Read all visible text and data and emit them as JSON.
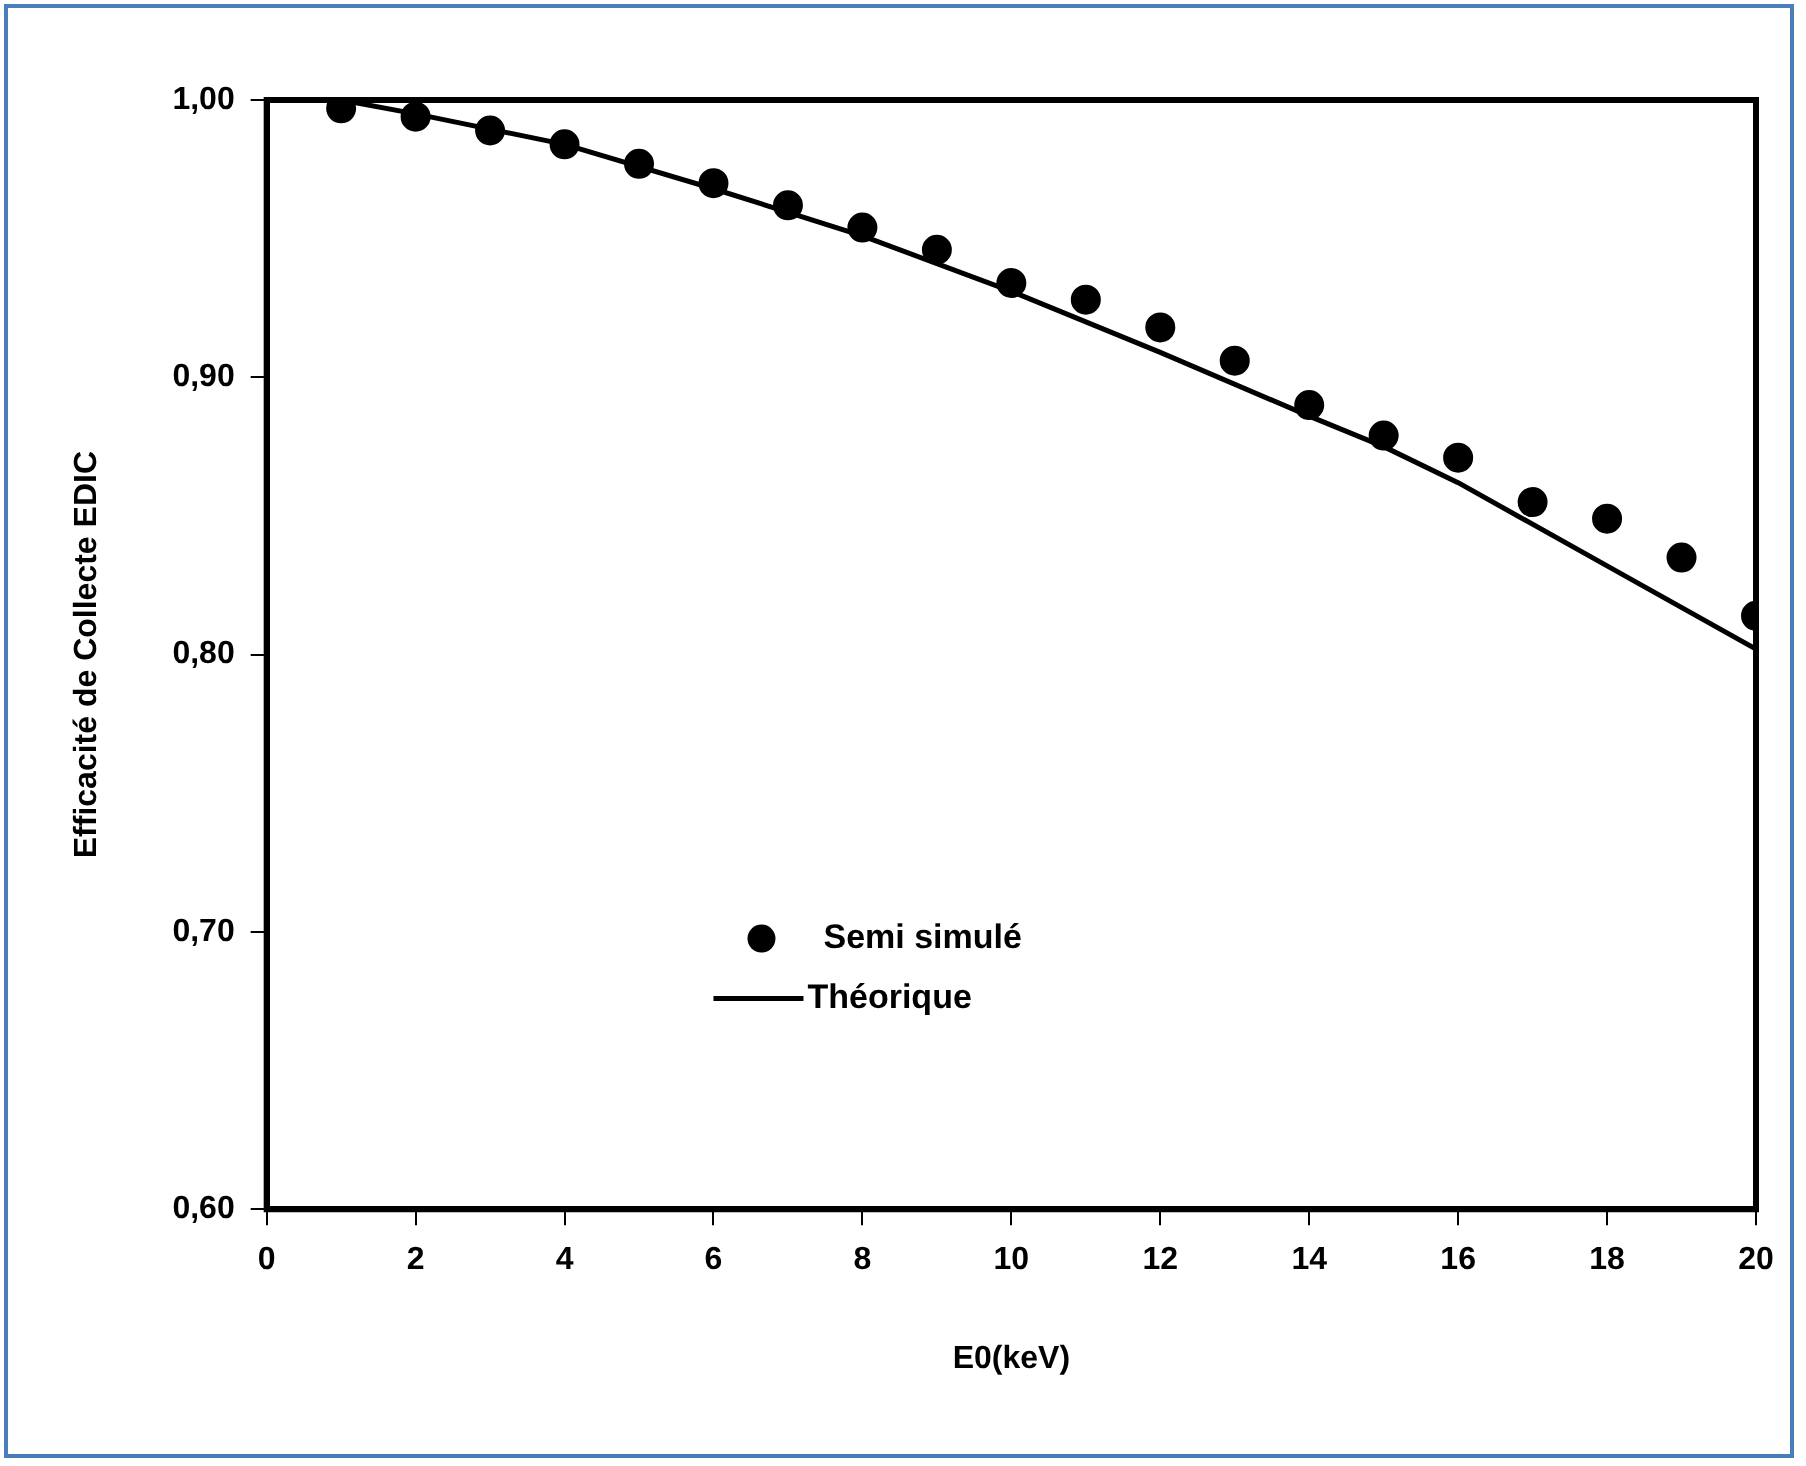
{
  "chart_data": {
    "type": "scatter",
    "xlabel": "E0(keV)",
    "ylabel": "Efficacité de Collecte EDIC",
    "xlim": [
      0,
      20
    ],
    "xticks": [
      0,
      2,
      4,
      6,
      8,
      10,
      12,
      14,
      16,
      18,
      20
    ],
    "ylim": [
      0.6,
      1.0
    ],
    "yticks": [
      {
        "value": 0.6,
        "label": "0,60"
      },
      {
        "value": 0.7,
        "label": "0,70"
      },
      {
        "value": 0.8,
        "label": "0,80"
      },
      {
        "value": 0.9,
        "label": "0,90"
      },
      {
        "value": 1.0,
        "label": "1,00"
      }
    ],
    "grid": false,
    "legend": "center left",
    "series": [
      {
        "name": "Semi simulé",
        "type": "scatter",
        "marker": "circle",
        "color": "#000000",
        "x": [
          1,
          2,
          3,
          4,
          5,
          6,
          7,
          8,
          9,
          10,
          11,
          12,
          13,
          14,
          15,
          16,
          17,
          18,
          19,
          20
        ],
        "values": [
          0.997,
          0.994,
          0.989,
          0.984,
          0.977,
          0.97,
          0.962,
          0.954,
          0.946,
          0.934,
          0.928,
          0.918,
          0.906,
          0.89,
          0.879,
          0.871,
          0.855,
          0.849,
          0.835,
          0.814
        ]
      },
      {
        "name": "Théorique",
        "type": "line",
        "marker": "none",
        "line_style": "solid",
        "color": "#000000",
        "x": [
          1,
          2,
          4,
          6,
          8,
          10,
          12,
          14,
          15,
          16,
          18,
          20
        ],
        "values": [
          1.0,
          0.995,
          0.984,
          0.968,
          0.951,
          0.931,
          0.909,
          0.886,
          0.875,
          0.862,
          0.832,
          0.802
        ]
      }
    ]
  }
}
